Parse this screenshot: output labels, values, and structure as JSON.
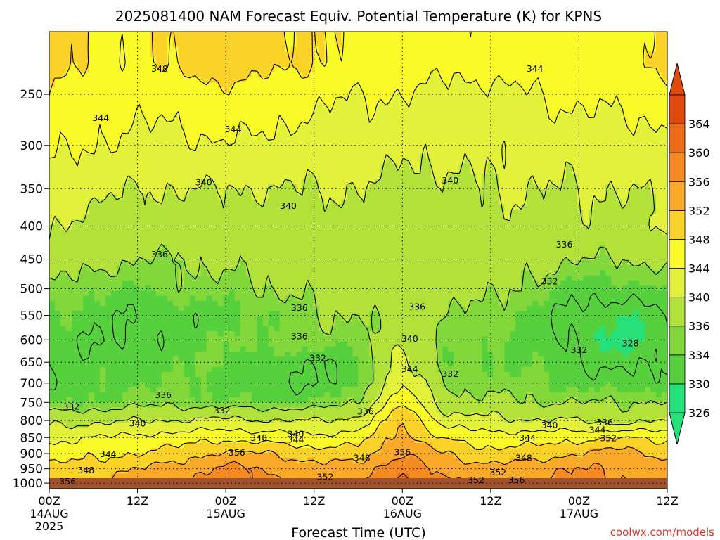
{
  "chart_data": {
    "type": "heatmap",
    "title": "2025081400 NAM Forecast Equiv. Potential Temperature (K) for KPNS",
    "xlabel": "Forecast Time (UTC)",
    "ylabel": "",
    "x_ticks": [
      {
        "hour": 0,
        "label": "00Z",
        "sub": "14AUG",
        "sub2": "2025"
      },
      {
        "hour": 12,
        "label": "12Z",
        "sub": "",
        "sub2": ""
      },
      {
        "hour": 24,
        "label": "00Z",
        "sub": "15AUG",
        "sub2": ""
      },
      {
        "hour": 36,
        "label": "12Z",
        "sub": "",
        "sub2": ""
      },
      {
        "hour": 48,
        "label": "00Z",
        "sub": "16AUG",
        "sub2": ""
      },
      {
        "hour": 60,
        "label": "12Z",
        "sub": "",
        "sub2": ""
      },
      {
        "hour": 72,
        "label": "00Z",
        "sub": "17AUG",
        "sub2": ""
      },
      {
        "hour": 84,
        "label": "12Z",
        "sub": "",
        "sub2": ""
      }
    ],
    "xlim": [
      0,
      84
    ],
    "y_ticks": [
      250,
      300,
      350,
      400,
      450,
      500,
      550,
      600,
      650,
      700,
      750,
      800,
      850,
      900,
      950,
      1000
    ],
    "ylim": [
      1020,
      200
    ],
    "y_scale": "log-pressure",
    "grid": true,
    "colorbar": {
      "labels": [
        326,
        330,
        334,
        336,
        340,
        344,
        348,
        352,
        356,
        360,
        364
      ],
      "colors": [
        "#26e07a",
        "#56d03c",
        "#82d83a",
        "#b2e23a",
        "#e2f23a",
        "#fafa28",
        "#fad228",
        "#faaa28",
        "#f58a22",
        "#ee6a16",
        "#e04a0c"
      ]
    },
    "x_hours": [
      0,
      6,
      12,
      18,
      24,
      30,
      36,
      42,
      48,
      54,
      60,
      66,
      72,
      78,
      84
    ],
    "pressure_levels": [
      225,
      250,
      300,
      350,
      400,
      450,
      500,
      550,
      600,
      650,
      700,
      750,
      800,
      850,
      900,
      950,
      1000
    ],
    "theta_e": [
      [
        349,
        348,
        347,
        349,
        350,
        349,
        348,
        347,
        346,
        345,
        345,
        346,
        347,
        347,
        349
      ],
      [
        347,
        346,
        345,
        346,
        347,
        346,
        345,
        344,
        344,
        343,
        343,
        344,
        345,
        345,
        346
      ],
      [
        345,
        344,
        343,
        343,
        344,
        343,
        342,
        342,
        341,
        341,
        341,
        341,
        342,
        342,
        343
      ],
      [
        342,
        341,
        340,
        340,
        340,
        340,
        340,
        340,
        339,
        339,
        340,
        340,
        340,
        340,
        341
      ],
      [
        340,
        339,
        338,
        338,
        338,
        338,
        338,
        339,
        338,
        338,
        339,
        339,
        339,
        339,
        340
      ],
      [
        338,
        337,
        336,
        336,
        337,
        337,
        338,
        338,
        338,
        338,
        338,
        337,
        336,
        336,
        337
      ],
      [
        336,
        334,
        334,
        335,
        335,
        336,
        337,
        337,
        338,
        337,
        337,
        335,
        333,
        333,
        334
      ],
      [
        334,
        333,
        332,
        333,
        333,
        334,
        336,
        336,
        338,
        336,
        335,
        333,
        331,
        330,
        332
      ],
      [
        333,
        332,
        332,
        333,
        334,
        335,
        335,
        335,
        339,
        335,
        334,
        333,
        331,
        329,
        331
      ],
      [
        333,
        333,
        333,
        334,
        334,
        333,
        332,
        333,
        342,
        334,
        334,
        334,
        332,
        331,
        332
      ],
      [
        332,
        333,
        334,
        334,
        333,
        332,
        332,
        333,
        344,
        335,
        335,
        334,
        333,
        333,
        333
      ],
      [
        333,
        334,
        335,
        335,
        334,
        334,
        334,
        336,
        348,
        337,
        337,
        336,
        336,
        336,
        336
      ],
      [
        339,
        339,
        340,
        340,
        341,
        340,
        340,
        341,
        352,
        342,
        341,
        340,
        340,
        338,
        340
      ],
      [
        343,
        344,
        345,
        346,
        347,
        346,
        345,
        346,
        354,
        347,
        346,
        346,
        347,
        348,
        347
      ],
      [
        346,
        347,
        348,
        350,
        353,
        352,
        350,
        350,
        356,
        352,
        349,
        350,
        352,
        354,
        351
      ],
      [
        349,
        350,
        352,
        354,
        357,
        356,
        353,
        354,
        359,
        355,
        353,
        355,
        356,
        356,
        353
      ],
      [
        351,
        352,
        354,
        356,
        358,
        357,
        354,
        356,
        361,
        357,
        355,
        356,
        357,
        356,
        354
      ]
    ],
    "contour_labels": [
      {
        "t": 15.0,
        "p": 228,
        "v": "348"
      },
      {
        "t": 66.0,
        "p": 228,
        "v": "344"
      },
      {
        "t": 7.0,
        "p": 272,
        "v": "344"
      },
      {
        "t": 25.0,
        "p": 283,
        "v": "344"
      },
      {
        "t": 21.0,
        "p": 342,
        "v": "340"
      },
      {
        "t": 32.5,
        "p": 372,
        "v": "340"
      },
      {
        "t": 54.5,
        "p": 340,
        "v": "340"
      },
      {
        "t": 15.0,
        "p": 442,
        "v": "336"
      },
      {
        "t": 70.0,
        "p": 427,
        "v": "336"
      },
      {
        "t": 68.0,
        "p": 487,
        "v": "332"
      },
      {
        "t": 34.0,
        "p": 535,
        "v": "336"
      },
      {
        "t": 50.0,
        "p": 533,
        "v": "336"
      },
      {
        "t": 34.0,
        "p": 592,
        "v": "336"
      },
      {
        "t": 49.0,
        "p": 597,
        "v": "340"
      },
      {
        "t": 36.5,
        "p": 640,
        "v": "332"
      },
      {
        "t": 49.0,
        "p": 665,
        "v": "344"
      },
      {
        "t": 54.5,
        "p": 677,
        "v": "332"
      },
      {
        "t": 72.0,
        "p": 622,
        "v": "332"
      },
      {
        "t": 79.0,
        "p": 607,
        "v": "328"
      },
      {
        "t": 15.5,
        "p": 730,
        "v": "336"
      },
      {
        "t": 3.0,
        "p": 761,
        "v": "332"
      },
      {
        "t": 23.5,
        "p": 771,
        "v": "332"
      },
      {
        "t": 43.0,
        "p": 774,
        "v": "336"
      },
      {
        "t": 12.0,
        "p": 808,
        "v": "340"
      },
      {
        "t": 33.5,
        "p": 839,
        "v": "340"
      },
      {
        "t": 33.5,
        "p": 856,
        "v": "344"
      },
      {
        "t": 28.5,
        "p": 850,
        "v": "348"
      },
      {
        "t": 65.0,
        "p": 850,
        "v": "344"
      },
      {
        "t": 68.0,
        "p": 813,
        "v": "340"
      },
      {
        "t": 74.5,
        "p": 826,
        "v": "344"
      },
      {
        "t": 75.5,
        "p": 805,
        "v": "336"
      },
      {
        "t": 76.0,
        "p": 852,
        "v": "352"
      },
      {
        "t": 8.0,
        "p": 901,
        "v": "344"
      },
      {
        "t": 25.5,
        "p": 896,
        "v": "356"
      },
      {
        "t": 42.5,
        "p": 914,
        "v": "348"
      },
      {
        "t": 48.0,
        "p": 895,
        "v": "356"
      },
      {
        "t": 64.5,
        "p": 914,
        "v": "348"
      },
      {
        "t": 5.0,
        "p": 955,
        "v": "348"
      },
      {
        "t": 37.5,
        "p": 977,
        "v": "352"
      },
      {
        "t": 61.0,
        "p": 962,
        "v": "352"
      },
      {
        "t": 58.0,
        "p": 988,
        "v": "352"
      },
      {
        "t": 63.5,
        "p": 988,
        "v": "356"
      },
      {
        "t": 2.5,
        "p": 994,
        "v": "356"
      }
    ],
    "credit": "coolwx.com/models"
  }
}
